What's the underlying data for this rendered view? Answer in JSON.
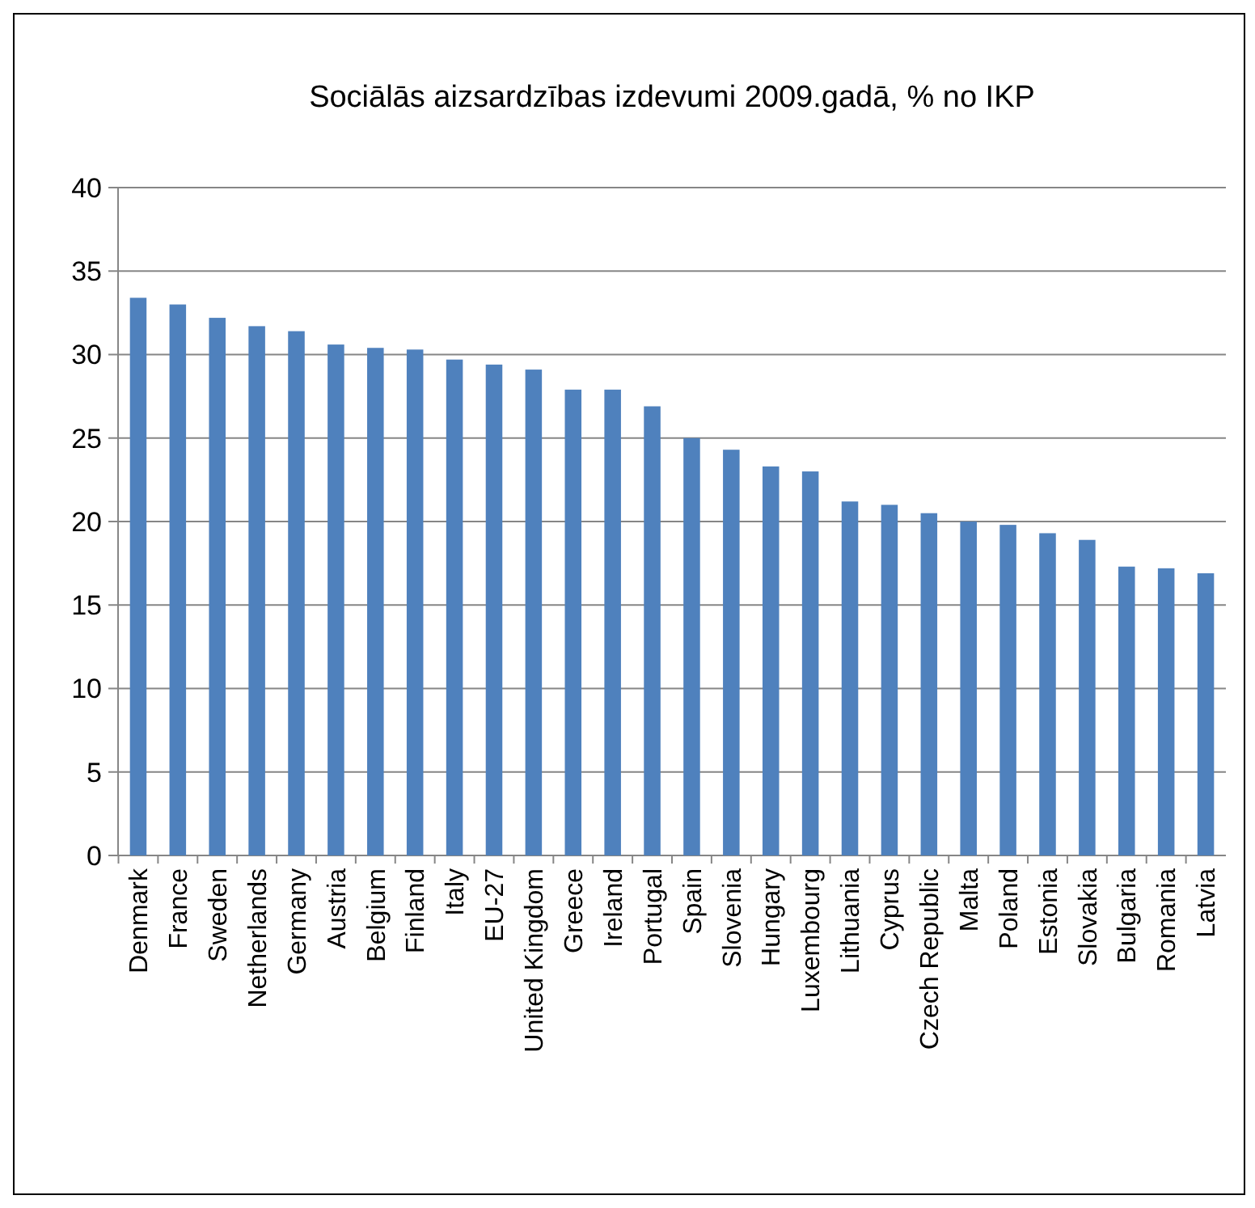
{
  "chart_data": {
    "type": "bar",
    "title": "Sociālās aizsardzības izdevumi 2009.gadā, % no IKP",
    "categories": [
      "Denmark",
      "France",
      "Sweden",
      "Netherlands",
      "Germany",
      "Austria",
      "Belgium",
      "Finland",
      "Italy",
      "EU-27",
      "United Kingdom",
      "Greece",
      "Ireland",
      "Portugal",
      "Spain",
      "Slovenia",
      "Hungary",
      "Luxembourg",
      "Lithuania",
      "Cyprus",
      "Czech Republic",
      "Malta",
      "Poland",
      "Estonia",
      "Slovakia",
      "Bulgaria",
      "Romania",
      "Latvia"
    ],
    "values": [
      33.4,
      33.0,
      32.2,
      31.7,
      31.4,
      30.6,
      30.4,
      30.3,
      29.7,
      29.4,
      29.1,
      27.9,
      27.9,
      26.9,
      25.0,
      24.3,
      23.3,
      23.0,
      21.2,
      21.0,
      20.5,
      20.0,
      19.8,
      19.3,
      18.9,
      17.3,
      17.2,
      16.9
    ],
    "color": "#4f81bd",
    "ylim": [
      0,
      40
    ],
    "yticks": [
      0,
      5,
      10,
      15,
      20,
      25,
      30,
      35,
      40
    ],
    "grid": "y"
  }
}
